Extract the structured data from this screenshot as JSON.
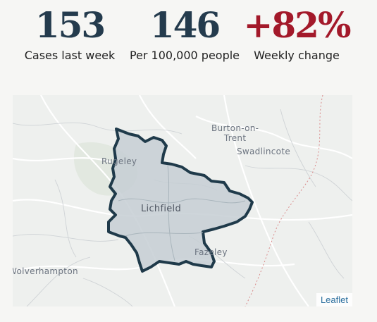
{
  "stats": [
    {
      "value": "153",
      "label": "Cases last week"
    },
    {
      "value": "146",
      "label": "Per 100,000 people"
    },
    {
      "value": "+82%",
      "label": "Weekly change"
    }
  ],
  "colors": {
    "value_text": "#243b4d",
    "change_text": "#a3192a",
    "area_fill": "#c5ced3",
    "area_stroke": "#1f3a4a",
    "attribution_link": "#2b6f9e"
  },
  "map": {
    "area_name": "Lichfield",
    "places": {
      "burton": "Burton-on-\nTrent",
      "swadlincote": "Swadlincote",
      "rugeley": "Rugeley",
      "fazeley": "Fazeley",
      "wolverhampton": "Wolverhampton"
    },
    "attribution": "Leaflet"
  }
}
